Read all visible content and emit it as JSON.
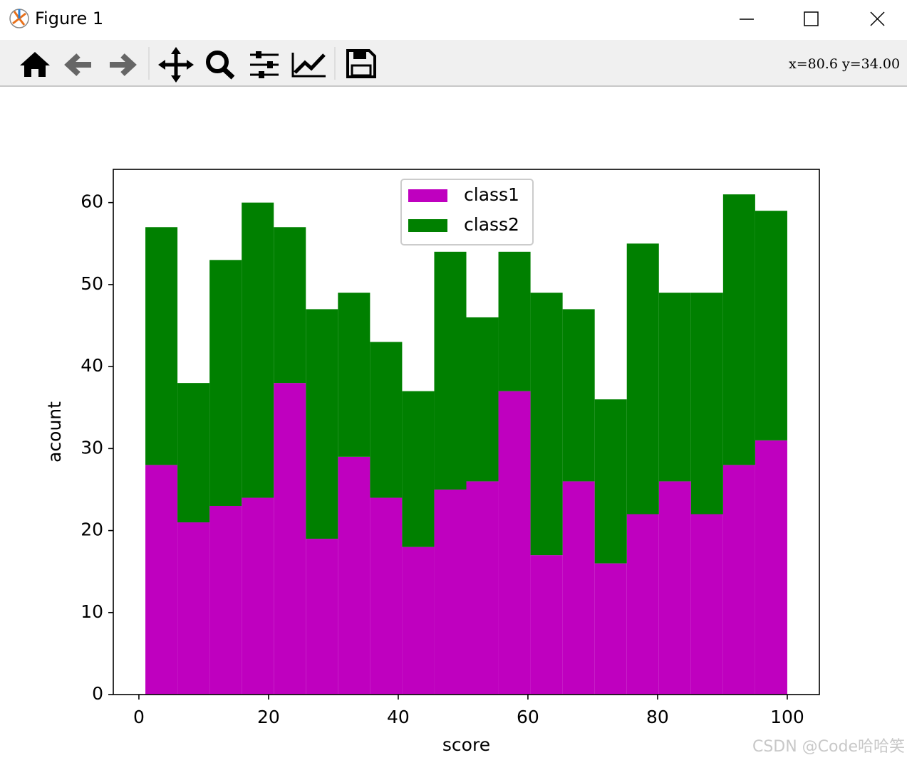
{
  "window": {
    "title": "Figure 1",
    "coordinates": "x=80.6  y=34.00"
  },
  "watermark": "CSDN @Code哈哈笑",
  "chart_data": {
    "type": "histogram",
    "stacked": true,
    "xlabel": "score",
    "ylabel": "acount",
    "bins": [
      1,
      5.95,
      10.9,
      15.85,
      20.8,
      25.75,
      30.7,
      35.65,
      40.6,
      45.55,
      50.5,
      55.45,
      60.4,
      65.35,
      70.3,
      75.25,
      80.2,
      85.15,
      90.1,
      95.05,
      100
    ],
    "series": [
      {
        "name": "class1",
        "color": "#bf00bf",
        "values": [
          28,
          21,
          23,
          24,
          38,
          19,
          29,
          24,
          18,
          25,
          26,
          37,
          17,
          26,
          16,
          22,
          26,
          22,
          28,
          31
        ]
      },
      {
        "name": "class2",
        "color": "#008000",
        "values": [
          29,
          17,
          30,
          36,
          19,
          28,
          20,
          19,
          19,
          29,
          20,
          17,
          32,
          21,
          20,
          33,
          23,
          27,
          33,
          28
        ]
      }
    ],
    "xlim": [
      -3.95,
      104.95
    ],
    "xticks": [
      0,
      20,
      40,
      60,
      80,
      100
    ],
    "ylim": [
      0,
      64.05
    ],
    "yticks": [
      0,
      10,
      20,
      30,
      40,
      50,
      60
    ],
    "grid": false,
    "legend": "upper center"
  }
}
